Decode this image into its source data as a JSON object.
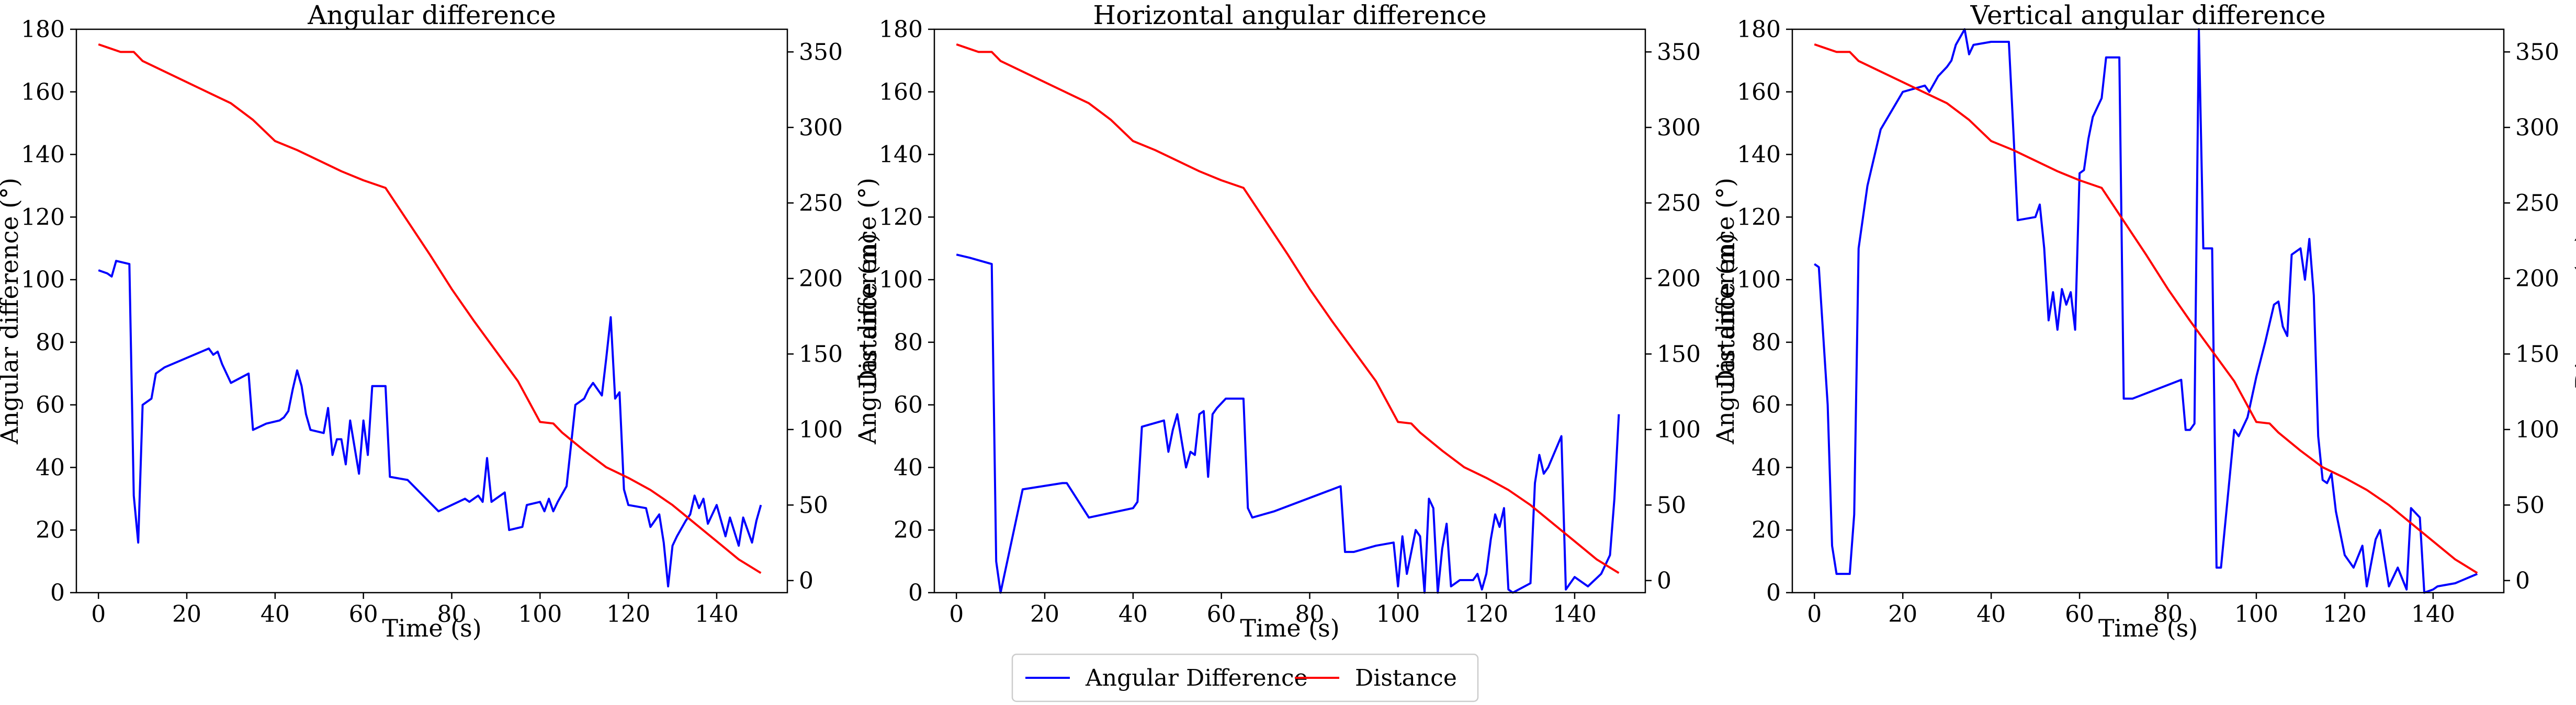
{
  "legend": {
    "placement": "bottom-center",
    "entries": [
      {
        "label": "Angular Difference",
        "color": "#0000ff"
      },
      {
        "label": "Distance",
        "color": "#ff0000"
      }
    ]
  },
  "chart_data": [
    {
      "type": "line",
      "title": "Angular difference",
      "xlabel": "Time (s)",
      "ylabel": "Angular difference (°)",
      "y2label": "Distance (m)",
      "xlim": [
        -5,
        156
      ],
      "ylim": [
        0,
        180
      ],
      "y2lim": [
        -8,
        365
      ],
      "xticks": [
        0,
        20,
        40,
        60,
        80,
        100,
        120,
        140
      ],
      "yticks": [
        0,
        20,
        40,
        60,
        80,
        100,
        120,
        140,
        160,
        180
      ],
      "y2ticks": [
        0,
        50,
        100,
        150,
        200,
        250,
        300,
        350
      ],
      "grid": false,
      "series": [
        {
          "name": "Angular Difference",
          "axis": "left",
          "color": "#0000ff",
          "x": [
            0,
            2,
            3,
            4,
            7,
            8,
            9,
            10,
            12,
            13,
            15,
            20,
            25,
            26,
            27,
            28,
            30,
            34,
            35,
            38,
            41,
            42,
            43,
            44,
            45,
            46,
            47,
            48,
            51,
            52,
            53,
            54,
            55,
            56,
            57,
            59,
            60,
            61,
            62,
            65,
            66,
            70,
            77,
            83,
            84,
            86,
            87,
            88,
            89,
            90,
            92,
            93,
            96,
            97,
            100,
            101,
            102,
            103,
            104,
            106,
            107,
            108,
            110,
            111,
            112,
            114,
            115,
            116,
            117,
            118,
            119,
            120,
            124,
            125,
            127,
            128,
            129,
            130,
            131,
            133,
            134,
            135,
            136,
            137,
            138,
            140,
            142,
            143,
            145,
            146,
            147,
            148,
            149,
            150
          ],
          "y": [
            103,
            102,
            101,
            106,
            105,
            31,
            16,
            60,
            62,
            70,
            72,
            75,
            78,
            76,
            77,
            73,
            67,
            70,
            52,
            54,
            55,
            56,
            58,
            65,
            71,
            66,
            57,
            52,
            51,
            59,
            44,
            49,
            49,
            41,
            55,
            38,
            55,
            44,
            66,
            66,
            37,
            36,
            26,
            30,
            29,
            31,
            29,
            43,
            29,
            30,
            32,
            20,
            21,
            28,
            29,
            26,
            30,
            26,
            29,
            34,
            47,
            60,
            62,
            65,
            67,
            63,
            75,
            88,
            62,
            64,
            33,
            28,
            27,
            21,
            25,
            16,
            2,
            15,
            18,
            23,
            25,
            31,
            27,
            30,
            22,
            28,
            18,
            24,
            15,
            24,
            20,
            16,
            23,
            28
          ]
        },
        {
          "name": "Distance",
          "axis": "right",
          "color": "#ff0000",
          "x": [
            0,
            2,
            5,
            8,
            10,
            15,
            20,
            25,
            30,
            35,
            40,
            45,
            50,
            55,
            60,
            65,
            70,
            75,
            80,
            85,
            90,
            95,
            100,
            103,
            105,
            110,
            115,
            120,
            125,
            130,
            135,
            140,
            145,
            150
          ],
          "y": [
            355,
            353,
            350,
            350,
            344,
            337,
            330,
            323,
            316,
            305,
            291,
            285,
            278,
            271,
            265,
            260,
            238,
            216,
            193,
            172,
            152,
            132,
            105,
            104,
            98,
            86,
            75,
            68,
            60,
            50,
            38,
            26,
            14,
            5
          ]
        }
      ]
    },
    {
      "type": "line",
      "title": "Horizontal angular difference",
      "xlabel": "Time (s)",
      "ylabel": "Angular difference (°)",
      "y2label": "Distance (m)",
      "xlim": [
        -5,
        156
      ],
      "ylim": [
        0,
        180
      ],
      "y2lim": [
        -8,
        365
      ],
      "xticks": [
        0,
        20,
        40,
        60,
        80,
        100,
        120,
        140
      ],
      "yticks": [
        0,
        20,
        40,
        60,
        80,
        100,
        120,
        140,
        160,
        180
      ],
      "y2ticks": [
        0,
        50,
        100,
        150,
        200,
        250,
        300,
        350
      ],
      "grid": false,
      "series": [
        {
          "name": "Angular Difference",
          "axis": "left",
          "color": "#0000ff",
          "x": [
            0,
            3,
            8,
            9,
            10,
            15,
            24,
            25,
            30,
            40,
            41,
            42,
            47,
            48,
            49,
            50,
            52,
            53,
            54,
            55,
            56,
            57,
            58,
            59,
            61,
            65,
            66,
            67,
            72,
            87,
            88,
            90,
            95,
            99,
            100,
            101,
            102,
            104,
            105,
            106,
            107,
            108,
            109,
            110,
            111,
            112,
            114,
            117,
            118,
            119,
            120,
            121,
            122,
            123,
            124,
            125,
            126,
            130,
            131,
            132,
            133,
            134,
            137,
            138,
            139,
            140,
            143,
            146,
            148,
            149,
            150
          ],
          "y": [
            108,
            107,
            105,
            10,
            0,
            33,
            35,
            35,
            24,
            27,
            29,
            53,
            55,
            45,
            52,
            57,
            40,
            45,
            44,
            57,
            58,
            37,
            57,
            59,
            62,
            62,
            27,
            24,
            26,
            34,
            13,
            13,
            15,
            16,
            2,
            18,
            6,
            20,
            18,
            0,
            30,
            27,
            0,
            14,
            22,
            2,
            4,
            4,
            6,
            1,
            6,
            17,
            25,
            21,
            27,
            1,
            0,
            3,
            35,
            44,
            38,
            40,
            50,
            1,
            3,
            5,
            2,
            6,
            12,
            30,
            57
          ]
        },
        {
          "name": "Distance",
          "axis": "right",
          "color": "#ff0000",
          "x": [
            0,
            2,
            5,
            8,
            10,
            15,
            20,
            25,
            30,
            35,
            40,
            45,
            50,
            55,
            60,
            65,
            70,
            75,
            80,
            85,
            90,
            95,
            100,
            103,
            105,
            110,
            115,
            120,
            125,
            130,
            135,
            140,
            145,
            150
          ],
          "y": [
            355,
            353,
            350,
            350,
            344,
            337,
            330,
            323,
            316,
            305,
            291,
            285,
            278,
            271,
            265,
            260,
            238,
            216,
            193,
            172,
            152,
            132,
            105,
            104,
            98,
            86,
            75,
            68,
            60,
            50,
            38,
            26,
            14,
            5
          ]
        }
      ]
    },
    {
      "type": "line",
      "title": "Vertical angular difference",
      "xlabel": "Time (s)",
      "ylabel": "Angular difference (°)",
      "y2label": "Distance (m)",
      "xlim": [
        -5,
        156
      ],
      "ylim": [
        0,
        180
      ],
      "y2lim": [
        -8,
        365
      ],
      "xticks": [
        0,
        20,
        40,
        60,
        80,
        100,
        120,
        140
      ],
      "yticks": [
        0,
        20,
        40,
        60,
        80,
        100,
        120,
        140,
        160,
        180
      ],
      "y2ticks": [
        0,
        50,
        100,
        150,
        200,
        250,
        300,
        350
      ],
      "grid": false,
      "series": [
        {
          "name": "Angular Difference",
          "axis": "left",
          "color": "#0000ff",
          "x": [
            0,
            1,
            3,
            4,
            5,
            8,
            9,
            10,
            12,
            15,
            20,
            25,
            26,
            28,
            30,
            31,
            32,
            34,
            35,
            36,
            40,
            44,
            45,
            46,
            50,
            51,
            52,
            53,
            54,
            55,
            56,
            57,
            58,
            59,
            60,
            61,
            62,
            63,
            65,
            66,
            68,
            69,
            70,
            72,
            83,
            84,
            85,
            86,
            87,
            88,
            89,
            90,
            91,
            92,
            95,
            96,
            98,
            100,
            102,
            104,
            105,
            106,
            107,
            108,
            110,
            111,
            112,
            113,
            114,
            115,
            116,
            117,
            118,
            120,
            122,
            124,
            125,
            127,
            128,
            130,
            132,
            134,
            135,
            137,
            138,
            140,
            141,
            145,
            150
          ],
          "y": [
            105,
            104,
            60,
            15,
            6,
            6,
            25,
            110,
            130,
            148,
            160,
            162,
            160,
            165,
            168,
            170,
            175,
            180,
            172,
            175,
            176,
            176,
            148,
            119,
            120,
            124,
            110,
            87,
            96,
            84,
            97,
            92,
            96,
            84,
            134,
            135,
            145,
            152,
            158,
            171,
            171,
            171,
            62,
            62,
            68,
            52,
            52,
            54,
            180,
            110,
            110,
            110,
            8,
            8,
            52,
            50,
            56,
            69,
            80,
            92,
            93,
            85,
            82,
            108,
            110,
            100,
            113,
            95,
            50,
            36,
            35,
            38,
            26,
            12,
            8,
            15,
            2,
            17,
            20,
            2,
            8,
            1,
            27,
            24,
            0,
            1,
            2,
            3,
            6
          ]
        },
        {
          "name": "Distance",
          "axis": "right",
          "color": "#ff0000",
          "x": [
            0,
            2,
            5,
            8,
            10,
            15,
            20,
            25,
            30,
            35,
            40,
            45,
            50,
            55,
            60,
            65,
            70,
            75,
            80,
            85,
            90,
            95,
            100,
            103,
            105,
            110,
            115,
            120,
            125,
            130,
            135,
            140,
            145,
            150
          ],
          "y": [
            355,
            353,
            350,
            350,
            344,
            337,
            330,
            323,
            316,
            305,
            291,
            285,
            278,
            271,
            265,
            260,
            238,
            216,
            193,
            172,
            152,
            132,
            105,
            104,
            98,
            86,
            75,
            68,
            60,
            50,
            38,
            26,
            14,
            5
          ]
        }
      ]
    }
  ]
}
